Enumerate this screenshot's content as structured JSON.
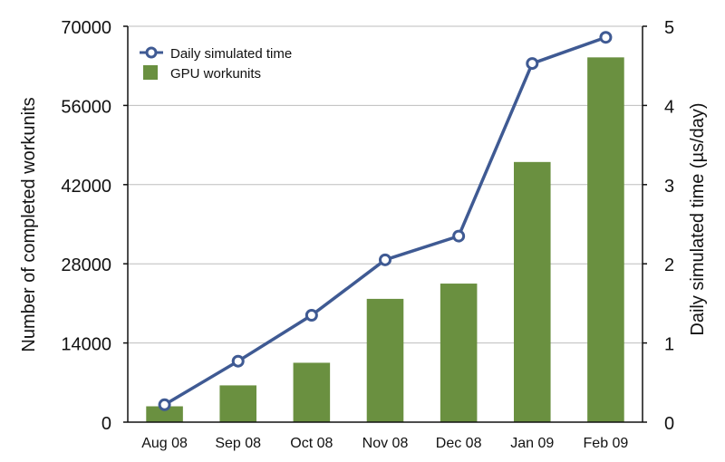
{
  "chart_data": {
    "type": "bar",
    "categories": [
      "Aug 08",
      "Sep 08",
      "Oct 08",
      "Nov 08",
      "Dec 08",
      "Jan 09",
      "Feb 09"
    ],
    "series": [
      {
        "name": "GPU workunits",
        "type": "bar",
        "axis": "left",
        "color": "#6a9040",
        "values": [
          2800,
          6500,
          10500,
          21800,
          24500,
          46000,
          64500
        ]
      },
      {
        "name": "Daily simulated time",
        "type": "line",
        "axis": "right",
        "color": "#3f5a93",
        "values": [
          0.22,
          0.77,
          1.35,
          2.05,
          2.35,
          4.53,
          4.86
        ]
      }
    ],
    "ylabel": "Number of completed workunits",
    "y2label": "Daily simulated time (µs/day)",
    "ylim": [
      0,
      70000
    ],
    "y2lim": [
      0,
      5
    ],
    "yticks": [
      "0",
      "14000",
      "28000",
      "42000",
      "56000",
      "70000"
    ],
    "y2ticks": [
      "0",
      "1",
      "2",
      "3",
      "4",
      "5"
    ],
    "grid": true,
    "legend": "top-left"
  }
}
